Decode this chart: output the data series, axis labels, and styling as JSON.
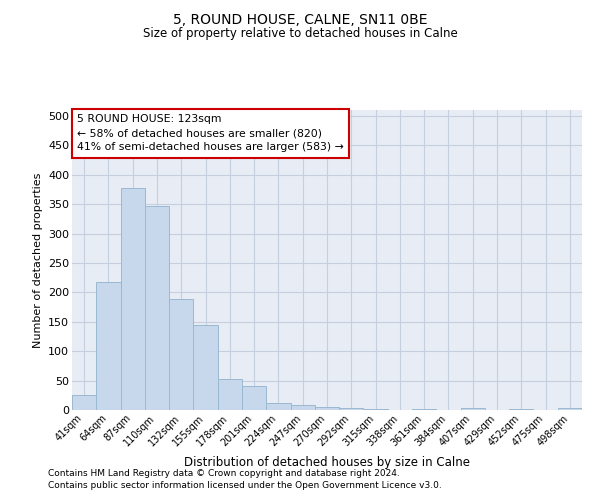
{
  "title": "5, ROUND HOUSE, CALNE, SN11 0BE",
  "subtitle": "Size of property relative to detached houses in Calne",
  "xlabel": "Distribution of detached houses by size in Calne",
  "ylabel": "Number of detached properties",
  "bar_labels": [
    "41sqm",
    "64sqm",
    "87sqm",
    "110sqm",
    "132sqm",
    "155sqm",
    "178sqm",
    "201sqm",
    "224sqm",
    "247sqm",
    "270sqm",
    "292sqm",
    "315sqm",
    "338sqm",
    "361sqm",
    "384sqm",
    "407sqm",
    "429sqm",
    "452sqm",
    "475sqm",
    "498sqm"
  ],
  "bar_values": [
    25,
    218,
    378,
    347,
    188,
    144,
    53,
    41,
    12,
    8,
    5,
    3,
    1,
    0,
    1,
    0,
    3,
    0,
    1,
    0,
    3
  ],
  "bar_color": "#c8d8ec",
  "bar_edge_color": "#9ab8d0",
  "grid_color": "#c5cfe0",
  "background_color": "#e8edf5",
  "annotation_lines": [
    "5 ROUND HOUSE: 123sqm",
    "← 58% of detached houses are smaller (820)",
    "41% of semi-detached houses are larger (583) →"
  ],
  "annotation_box_color": "#cc0000",
  "ylim": [
    0,
    510
  ],
  "yticks": [
    0,
    50,
    100,
    150,
    200,
    250,
    300,
    350,
    400,
    450,
    500
  ],
  "footnote1": "Contains HM Land Registry data © Crown copyright and database right 2024.",
  "footnote2": "Contains public sector information licensed under the Open Government Licence v3.0."
}
